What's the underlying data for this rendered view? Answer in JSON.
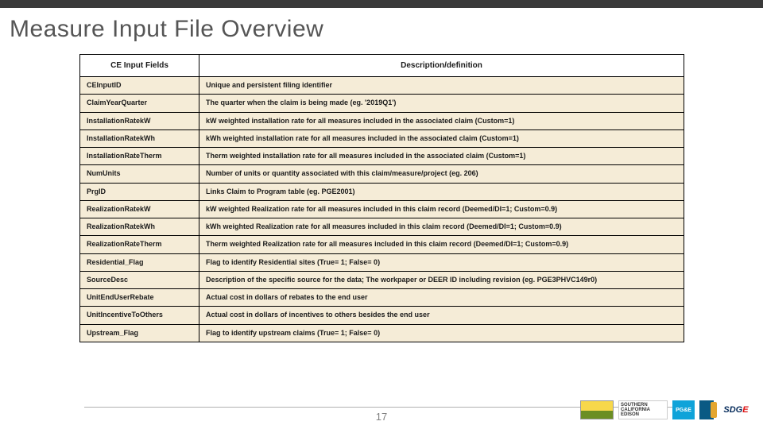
{
  "title": "Measure Input File Overview",
  "page_number": "17",
  "table": {
    "header_bg": "#ffffff",
    "row_bg": "#f5ecd7",
    "border_color": "#000000",
    "columns": [
      "CE Input Fields",
      "Description/definition"
    ],
    "rows": [
      [
        "CEInputID",
        "Unique and persistent filing identifier"
      ],
      [
        "ClaimYearQuarter",
        "The quarter when the claim is being made (eg. '2019Q1')"
      ],
      [
        "InstallationRatekW",
        "kW weighted installation rate for all measures included in the associated claim (Custom=1)"
      ],
      [
        "InstallationRatekWh",
        "kWh weighted installation rate for all measures included in the associated claim (Custom=1)"
      ],
      [
        "InstallationRateTherm",
        "Therm weighted installation rate for all measures included in the associated claim (Custom=1)"
      ],
      [
        "NumUnits",
        "Number of units or quantity associated with this claim/measure/project (eg. 206)"
      ],
      [
        "PrgID",
        "Links Claim to Program table (eg. PGE2001)"
      ],
      [
        "RealizationRatekW",
        "kW weighted Realization rate for all measures included in this claim record (Deemed/DI=1; Custom=0.9)"
      ],
      [
        "RealizationRatekWh",
        "kWh weighted Realization rate for all measures included in this claim record (Deemed/DI=1; Custom=0.9)"
      ],
      [
        "RealizationRateTherm",
        "Therm weighted Realization rate for all measures included in this claim record (Deemed/DI=1; Custom=0.9)"
      ],
      [
        "Residential_Flag",
        "Flag to identify Residential sites (True= 1; False= 0)"
      ],
      [
        "SourceDesc",
        "Description of the specific source for the data; The workpaper or DEER ID including revision (eg. PGE3PHVC149r0)"
      ],
      [
        "UnitEndUserRebate",
        "Actual cost in dollars of rebates to the end user"
      ],
      [
        "UnitIncentiveToOthers",
        "Actual cost in dollars of incentives to others besides the end user"
      ],
      [
        "Upstream_Flag",
        "Flag to identify upstream claims (True= 1; False= 0)"
      ]
    ]
  },
  "logos": {
    "edison": "SOUTHERN CALIFORNIA EDISON",
    "pge": "PG&E",
    "sdge": "SDGE"
  }
}
